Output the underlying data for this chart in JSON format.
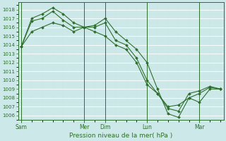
{
  "xlabel": "Pression niveau de la mer( hPa )",
  "bg_color": "#cce8e8",
  "grid_color": "#b8d8d8",
  "line_color": "#2d6e2d",
  "marker_color": "#2d6e2d",
  "ylim": [
    1005.5,
    1018.8
  ],
  "yticks": [
    1006,
    1007,
    1008,
    1009,
    1010,
    1011,
    1012,
    1013,
    1014,
    1015,
    1016,
    1017,
    1018
  ],
  "day_labels": [
    "Sam",
    "Mer",
    "Dim",
    "Lun",
    "Mar"
  ],
  "day_x": [
    0,
    6,
    8,
    12,
    17
  ],
  "total_points": 20,
  "series1_x": [
    0,
    1,
    2,
    3,
    4,
    5,
    6,
    7,
    8,
    9,
    10,
    11,
    12,
    13,
    14,
    15,
    16,
    17,
    18,
    19
  ],
  "series1_y": [
    1013.8,
    1017.0,
    1017.5,
    1018.2,
    1017.5,
    1016.5,
    1016.0,
    1016.2,
    1017.0,
    1015.5,
    1014.5,
    1013.5,
    1012.0,
    1009.0,
    1006.2,
    1005.8,
    1008.0,
    1008.5,
    1009.2,
    1009.0
  ],
  "series2_x": [
    0,
    1,
    2,
    3,
    4,
    5,
    6,
    7,
    8,
    9,
    10,
    11,
    12,
    13,
    14,
    15,
    16,
    17,
    18,
    19
  ],
  "series2_y": [
    1013.8,
    1016.7,
    1017.0,
    1017.8,
    1016.8,
    1016.0,
    1016.0,
    1016.0,
    1016.5,
    1014.5,
    1014.0,
    1012.5,
    1010.0,
    1008.5,
    1006.8,
    1006.5,
    1008.5,
    1008.8,
    1009.3,
    1009.0
  ],
  "series3_x": [
    0,
    1,
    2,
    3,
    4,
    5,
    6,
    7,
    8,
    9,
    10,
    11,
    12,
    13,
    14,
    15,
    16,
    17,
    18,
    19
  ],
  "series3_y": [
    1013.8,
    1015.5,
    1016.0,
    1016.5,
    1016.2,
    1015.5,
    1016.0,
    1015.5,
    1015.0,
    1014.0,
    1013.5,
    1012.0,
    1009.5,
    1008.5,
    1007.0,
    1007.2,
    1008.0,
    1007.5,
    1009.0,
    1009.0
  ]
}
